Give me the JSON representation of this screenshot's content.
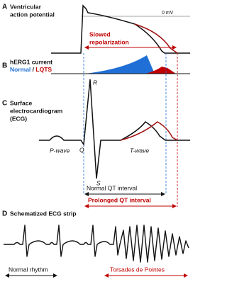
{
  "panel_a": {
    "letter": "A",
    "title_lines": [
      "Ventricular",
      "action potential"
    ],
    "zero_label": "0 mV",
    "annotation_lines": [
      "Slowed",
      "repolarization"
    ]
  },
  "panel_b": {
    "letter": "B",
    "title": "hERG1 current",
    "legend_normal": "Normal",
    "legend_separator": "/",
    "legend_lqts": "LQTS"
  },
  "panel_c": {
    "letter": "C",
    "title_lines": [
      "Surface",
      "electrocardiogram",
      "(ECG)"
    ],
    "r_label": "R",
    "p_label": "P-wave",
    "q_label": "Q",
    "s_label": "S",
    "t_label": "T-wave",
    "normal_qt": "Normal QT interval",
    "prolonged_qt": "Prolonged QT interval"
  },
  "panel_d": {
    "letter": "D",
    "title": "Schematized ECG strip",
    "normal_label": "Normal rhythm",
    "torsades_label": "Torsades de Pointes"
  }
}
